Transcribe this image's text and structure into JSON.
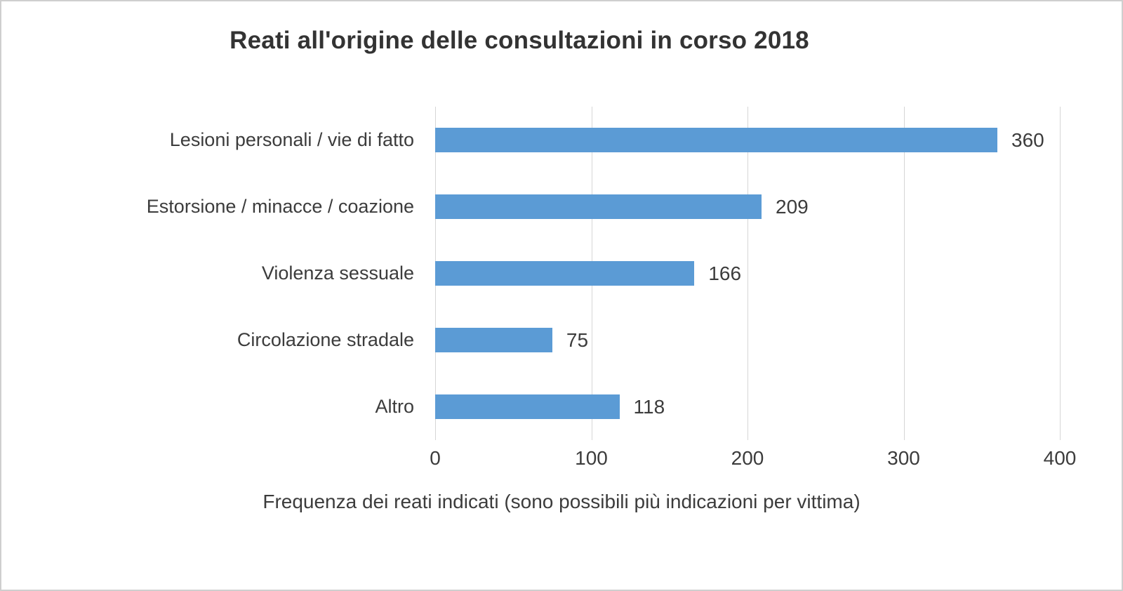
{
  "chart_data": {
    "type": "bar",
    "orientation": "horizontal",
    "title": "Reati all'origine delle consultazioni in corso 2018",
    "xlabel": "Frequenza dei reati indicati (sono possibili più indicazioni per vittima)",
    "ylabel": "",
    "categories": [
      "Lesioni personali / vie di fatto",
      "Estorsione / minacce / coazione",
      "Violenza sessuale",
      "Circolazione stradale",
      "Altro"
    ],
    "values": [
      360,
      209,
      166,
      75,
      118
    ],
    "xlim": [
      0,
      400
    ],
    "xticks": [
      0,
      100,
      200,
      300,
      400
    ],
    "grid": true,
    "legend": false
  },
  "colors": {
    "bar": "#5B9BD5",
    "gridline": "#d6d6d6",
    "text": "#3c3c3c",
    "title_text": "#333333",
    "frame_border": "#cfcfcf",
    "background": "#ffffff"
  }
}
